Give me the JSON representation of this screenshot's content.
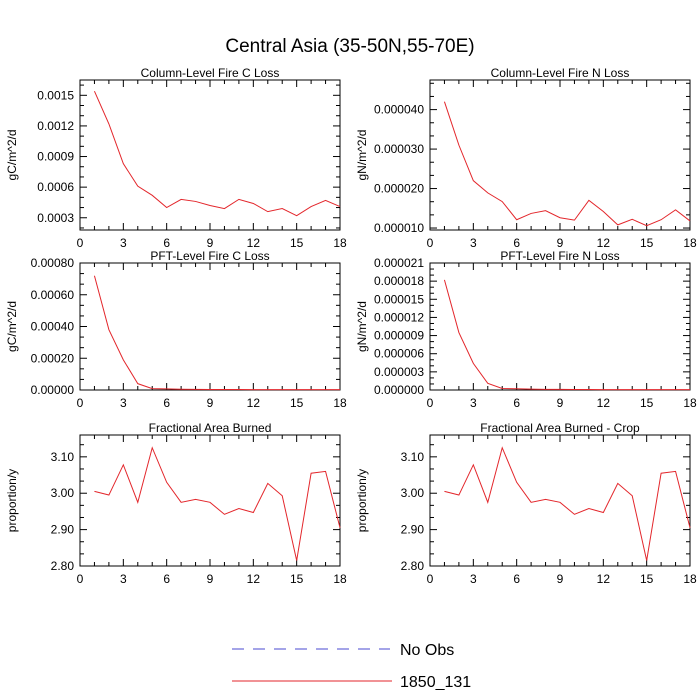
{
  "title": "Central Asia (35-50N,55-70E)",
  "legend": {
    "items": [
      {
        "label": "No Obs",
        "color": "#4a4ad0",
        "dash": true
      },
      {
        "label": "1850_131",
        "color": "#e3262b",
        "dash": false
      }
    ]
  },
  "chart_data": [
    {
      "type": "line",
      "title": "Column-Level Fire C Loss",
      "ylabel": "gC/m^2/d",
      "xlim": [
        0,
        18
      ],
      "xticks": [
        0,
        3,
        6,
        9,
        12,
        15,
        18
      ],
      "ylim": [
        0.00018,
        0.00165
      ],
      "yticks": [
        0.0003,
        0.0006,
        0.0009,
        0.0012,
        0.0015
      ],
      "ytick_labels": [
        "0.0003",
        "0.0006",
        "0.0009",
        "0.0012",
        "0.0015"
      ],
      "series": [
        {
          "name": "1850_131",
          "x": [
            1,
            2,
            3,
            4,
            5,
            6,
            7,
            8,
            9,
            10,
            11,
            12,
            13,
            14,
            15,
            16,
            17,
            18
          ],
          "values": [
            0.00154,
            0.00122,
            0.00083,
            0.00061,
            0.00052,
            0.0004,
            0.00048,
            0.00046,
            0.00042,
            0.00039,
            0.00048,
            0.00044,
            0.00036,
            0.00039,
            0.00032,
            0.00041,
            0.00047,
            0.00041
          ]
        }
      ]
    },
    {
      "type": "line",
      "title": "Column-Level Fire N Loss",
      "ylabel": "gN/m^2/d",
      "xlim": [
        0,
        18
      ],
      "xticks": [
        0,
        3,
        6,
        9,
        12,
        15,
        18
      ],
      "ylim": [
        9.5e-06,
        4.75e-05
      ],
      "yticks": [
        1e-05,
        2e-05,
        3e-05,
        4e-05
      ],
      "ytick_labels": [
        "0.000010",
        "0.000020",
        "0.000030",
        "0.000040"
      ],
      "series": [
        {
          "name": "1850_131",
          "x": [
            1,
            2,
            3,
            4,
            5,
            6,
            7,
            8,
            9,
            10,
            11,
            12,
            13,
            14,
            15,
            16,
            17,
            18
          ],
          "values": [
            4.2e-05,
            3.1e-05,
            2.2e-05,
            1.89e-05,
            1.67e-05,
            1.21e-05,
            1.37e-05,
            1.44e-05,
            1.26e-05,
            1.2e-05,
            1.7e-05,
            1.42e-05,
            1.08e-05,
            1.22e-05,
            1.06e-05,
            1.21e-05,
            1.46e-05,
            1.18e-05
          ]
        }
      ]
    },
    {
      "type": "line",
      "title": "PFT-Level Fire C Loss",
      "ylabel": "gC/m^2/d",
      "xlim": [
        0,
        18
      ],
      "xticks": [
        0,
        3,
        6,
        9,
        12,
        15,
        18
      ],
      "ylim": [
        0,
        0.0008
      ],
      "yticks": [
        0,
        0.0002,
        0.0004,
        0.0006,
        0.0008
      ],
      "ytick_labels": [
        "0.00000",
        "0.00020",
        "0.00040",
        "0.00060",
        "0.00080"
      ],
      "series": [
        {
          "name": "1850_131",
          "x": [
            1,
            2,
            3,
            4,
            5,
            6,
            7,
            8,
            9,
            10,
            11,
            12,
            13,
            14,
            15,
            16,
            17,
            18
          ],
          "values": [
            0.00072,
            0.00038,
            0.00019,
            4e-05,
            9e-06,
            7e-06,
            5e-06,
            4e-06,
            3e-06,
            3e-06,
            3e-06,
            2e-06,
            2e-06,
            2e-06,
            2e-06,
            2e-06,
            2e-06,
            2e-06
          ]
        }
      ]
    },
    {
      "type": "line",
      "title": "PFT-Level Fire N Loss",
      "ylabel": "gN/m^2/d",
      "xlim": [
        0,
        18
      ],
      "xticks": [
        0,
        3,
        6,
        9,
        12,
        15,
        18
      ],
      "ylim": [
        0,
        2.1e-05
      ],
      "yticks": [
        0,
        3e-06,
        6e-06,
        9e-06,
        1.2e-05,
        1.5e-05,
        1.8e-05,
        2.1e-05
      ],
      "ytick_labels": [
        "0.000000",
        "0.000003",
        "0.000006",
        "0.000009",
        "0.000012",
        "0.000015",
        "0.000018",
        "0.000021"
      ],
      "series": [
        {
          "name": "1850_131",
          "x": [
            1,
            2,
            3,
            4,
            5,
            6,
            7,
            8,
            9,
            10,
            11,
            12,
            13,
            14,
            15,
            16,
            17,
            18
          ],
          "values": [
            1.82e-05,
            9.5e-06,
            4.4e-06,
            1.1e-06,
            2.5e-07,
            2e-07,
            1.5e-07,
            1e-07,
            1e-07,
            8e-08,
            8e-08,
            7e-08,
            7e-08,
            6e-08,
            6e-08,
            6e-08,
            6e-08,
            6e-08
          ]
        }
      ]
    },
    {
      "type": "line",
      "title": "Fractional Area Burned",
      "ylabel": "proportion/y",
      "xlim": [
        0,
        18
      ],
      "xticks": [
        0,
        3,
        6,
        9,
        12,
        15,
        18
      ],
      "ylim": [
        2.8,
        3.16
      ],
      "yticks": [
        2.8,
        2.9,
        3.0,
        3.1
      ],
      "ytick_labels": [
        "2.80",
        "2.90",
        "3.00",
        "3.10"
      ],
      "series": [
        {
          "name": "1850_131",
          "x": [
            1,
            2,
            3,
            4,
            5,
            6,
            7,
            8,
            9,
            10,
            11,
            12,
            13,
            14,
            15,
            16,
            17,
            18
          ],
          "values": [
            3.005,
            2.995,
            3.078,
            2.975,
            3.125,
            3.03,
            2.975,
            2.983,
            2.975,
            2.942,
            2.958,
            2.947,
            3.027,
            2.993,
            2.815,
            3.055,
            3.06,
            2.905
          ]
        }
      ]
    },
    {
      "type": "line",
      "title": "Fractional Area Burned - Crop",
      "ylabel": "proportion/y",
      "xlim": [
        0,
        18
      ],
      "xticks": [
        0,
        3,
        6,
        9,
        12,
        15,
        18
      ],
      "ylim": [
        2.8,
        3.16
      ],
      "yticks": [
        2.8,
        2.9,
        3.0,
        3.1
      ],
      "ytick_labels": [
        "2.80",
        "2.90",
        "3.00",
        "3.10"
      ],
      "series": [
        {
          "name": "1850_131",
          "x": [
            1,
            2,
            3,
            4,
            5,
            6,
            7,
            8,
            9,
            10,
            11,
            12,
            13,
            14,
            15,
            16,
            17,
            18
          ],
          "values": [
            3.005,
            2.995,
            3.078,
            2.975,
            3.125,
            3.03,
            2.975,
            2.983,
            2.975,
            2.942,
            2.958,
            2.947,
            3.027,
            2.993,
            2.815,
            3.055,
            3.06,
            2.905
          ]
        }
      ]
    }
  ]
}
